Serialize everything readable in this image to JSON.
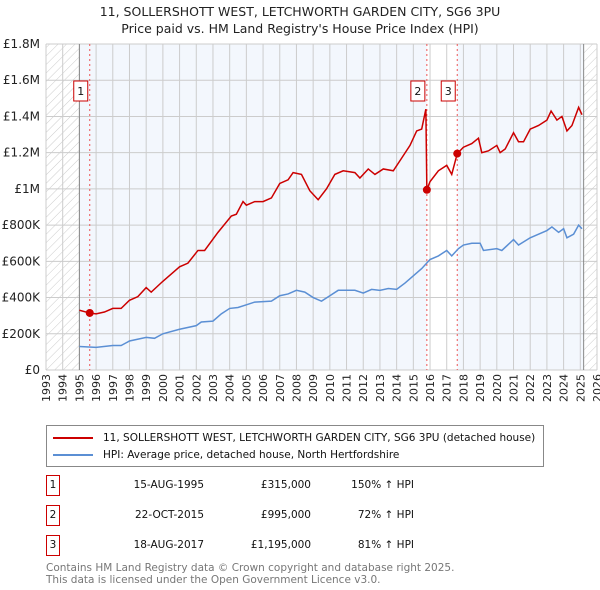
{
  "title": "11, SOLLERSHOTT WEST, LETCHWORTH GARDEN CITY, SG6 3PU",
  "subtitle": "Price paid vs. HM Land Registry's House Price Index (HPI)",
  "chart_data": {
    "type": "line",
    "xlim": [
      1993,
      2026
    ],
    "ylim": [
      0,
      1800000
    ],
    "x_ticks": [
      "1993",
      "1994",
      "1995",
      "1996",
      "1997",
      "1998",
      "1999",
      "2000",
      "2001",
      "2002",
      "2003",
      "2004",
      "2005",
      "2006",
      "2007",
      "2008",
      "2009",
      "2010",
      "2011",
      "2012",
      "2013",
      "2014",
      "2015",
      "2016",
      "2017",
      "2018",
      "2019",
      "2020",
      "2021",
      "2022",
      "2023",
      "2024",
      "2025",
      "2026"
    ],
    "y_ticks": [
      {
        "v": 0,
        "label": "£0"
      },
      {
        "v": 200000,
        "label": "£200K"
      },
      {
        "v": 400000,
        "label": "£400K"
      },
      {
        "v": 600000,
        "label": "£600K"
      },
      {
        "v": 800000,
        "label": "£800K"
      },
      {
        "v": 1000000,
        "label": "£1M"
      },
      {
        "v": 1200000,
        "label": "£1.2M"
      },
      {
        "v": 1400000,
        "label": "£1.4M"
      },
      {
        "v": 1600000,
        "label": "£1.6M"
      },
      {
        "v": 1800000,
        "label": "£1.8M"
      }
    ],
    "series": [
      {
        "name": "11, SOLLERSHOTT WEST, LETCHWORTH GARDEN CITY, SG6 3PU (detached house)",
        "color": "#cc0000",
        "points": [
          [
            1995,
            330
          ],
          [
            1995.6,
            315
          ],
          [
            1996,
            310
          ],
          [
            1996.5,
            320
          ],
          [
            1997,
            340
          ],
          [
            1997.5,
            340
          ],
          [
            1998,
            385
          ],
          [
            1998.5,
            405
          ],
          [
            1999,
            455
          ],
          [
            1999.3,
            430
          ],
          [
            2000,
            490
          ],
          [
            2000.5,
            530
          ],
          [
            2001,
            570
          ],
          [
            2001.5,
            590
          ],
          [
            2002.1,
            660
          ],
          [
            2002.5,
            660
          ],
          [
            2003.3,
            760
          ],
          [
            2004.1,
            850
          ],
          [
            2004.4,
            860
          ],
          [
            2004.8,
            930
          ],
          [
            2005,
            910
          ],
          [
            2005.5,
            930
          ],
          [
            2006,
            930
          ],
          [
            2006.5,
            950
          ],
          [
            2007,
            1030
          ],
          [
            2007.5,
            1050
          ],
          [
            2007.8,
            1090
          ],
          [
            2008.3,
            1080
          ],
          [
            2008.8,
            990
          ],
          [
            2009.3,
            940
          ],
          [
            2009.8,
            1000
          ],
          [
            2010.3,
            1080
          ],
          [
            2010.8,
            1100
          ],
          [
            2011.5,
            1090
          ],
          [
            2011.8,
            1060
          ],
          [
            2012.3,
            1110
          ],
          [
            2012.7,
            1080
          ],
          [
            2013.2,
            1110
          ],
          [
            2013.8,
            1100
          ],
          [
            2014.3,
            1170
          ],
          [
            2014.8,
            1240
          ],
          [
            2015.2,
            1320
          ],
          [
            2015.5,
            1330
          ],
          [
            2015.75,
            1440
          ],
          [
            2015.81,
            995
          ],
          [
            2016,
            1040
          ],
          [
            2016.5,
            1100
          ],
          [
            2017,
            1130
          ],
          [
            2017.3,
            1080
          ],
          [
            2017.63,
            1195
          ],
          [
            2018,
            1230
          ],
          [
            2018.5,
            1250
          ],
          [
            2018.9,
            1280
          ],
          [
            2019.1,
            1200
          ],
          [
            2019.5,
            1210
          ],
          [
            2020,
            1240
          ],
          [
            2020.2,
            1200
          ],
          [
            2020.5,
            1220
          ],
          [
            2021,
            1310
          ],
          [
            2021.3,
            1260
          ],
          [
            2021.6,
            1260
          ],
          [
            2022,
            1330
          ],
          [
            2022.5,
            1350
          ],
          [
            2023,
            1380
          ],
          [
            2023.25,
            1430
          ],
          [
            2023.6,
            1380
          ],
          [
            2023.9,
            1400
          ],
          [
            2024.2,
            1320
          ],
          [
            2024.5,
            1350
          ],
          [
            2024.9,
            1450
          ],
          [
            2025.1,
            1410
          ]
        ]
      },
      {
        "name": "HPI: Average price, detached house, North Hertfordshire",
        "color": "#5b8fd4",
        "points": [
          [
            1995,
            130
          ],
          [
            1996,
            125
          ],
          [
            1997,
            135
          ],
          [
            1997.5,
            135
          ],
          [
            1998,
            160
          ],
          [
            1999,
            180
          ],
          [
            1999.5,
            175
          ],
          [
            2000,
            200
          ],
          [
            2001,
            225
          ],
          [
            2002,
            245
          ],
          [
            2002.3,
            265
          ],
          [
            2003,
            270
          ],
          [
            2003.5,
            310
          ],
          [
            2004,
            340
          ],
          [
            2004.5,
            345
          ],
          [
            2005,
            360
          ],
          [
            2005.5,
            375
          ],
          [
            2006.5,
            380
          ],
          [
            2007,
            410
          ],
          [
            2007.5,
            420
          ],
          [
            2008,
            440
          ],
          [
            2008.5,
            430
          ],
          [
            2009,
            400
          ],
          [
            2009.5,
            380
          ],
          [
            2010,
            410
          ],
          [
            2010.5,
            440
          ],
          [
            2011.5,
            440
          ],
          [
            2012,
            425
          ],
          [
            2012.5,
            445
          ],
          [
            2013,
            440
          ],
          [
            2013.5,
            450
          ],
          [
            2014,
            445
          ],
          [
            2014.5,
            480
          ],
          [
            2015,
            520
          ],
          [
            2015.5,
            560
          ],
          [
            2016,
            610
          ],
          [
            2016.5,
            630
          ],
          [
            2017,
            660
          ],
          [
            2017.3,
            630
          ],
          [
            2017.7,
            670
          ],
          [
            2018,
            690
          ],
          [
            2018.5,
            700
          ],
          [
            2019,
            700
          ],
          [
            2019.2,
            660
          ],
          [
            2020,
            670
          ],
          [
            2020.3,
            660
          ],
          [
            2021,
            720
          ],
          [
            2021.3,
            690
          ],
          [
            2022,
            730
          ],
          [
            2022.5,
            750
          ],
          [
            2023,
            770
          ],
          [
            2023.3,
            790
          ],
          [
            2023.7,
            760
          ],
          [
            2024,
            780
          ],
          [
            2024.2,
            730
          ],
          [
            2024.6,
            750
          ],
          [
            2024.9,
            800
          ],
          [
            2025.1,
            780
          ]
        ]
      }
    ],
    "sales": [
      {
        "num": "1",
        "x": 1995.62,
        "value": 315000,
        "date": "15-AUG-1995",
        "price": "£315,000",
        "hpi": "150% ↑ HPI"
      },
      {
        "num": "2",
        "x": 2015.81,
        "value": 995000,
        "date": "22-OCT-2015",
        "price": "£995,000",
        "hpi": "72% ↑ HPI"
      },
      {
        "num": "3",
        "x": 2017.63,
        "value": 1195000,
        "date": "18-AUG-2017",
        "price": "£1,195,000",
        "hpi": "81% ↑ HPI"
      }
    ]
  },
  "footer": [
    "Contains HM Land Registry data © Crown copyright and database right 2025.",
    "This data is licensed under the Open Government Licence v3.0."
  ]
}
